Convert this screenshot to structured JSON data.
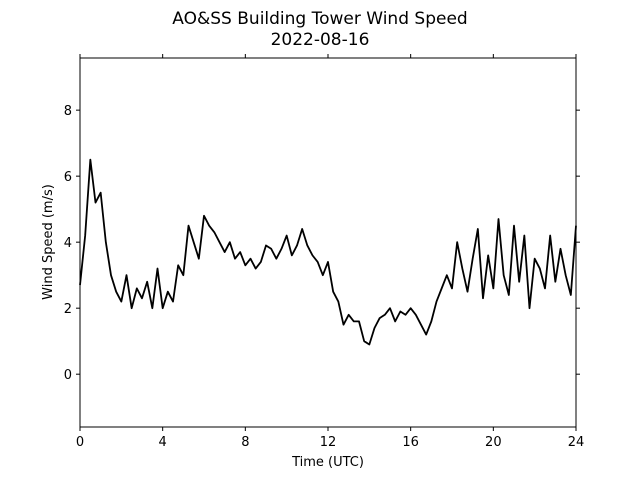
{
  "chart_data": {
    "type": "line",
    "title": "AO&SS Building Tower Wind Speed",
    "subtitle": "2022-08-16",
    "x_label": "Time (UTC)",
    "y_label": "Wind Speed (m/s)",
    "x": [
      0,
      0.25,
      0.5,
      0.75,
      1,
      1.25,
      1.5,
      1.75,
      2,
      2.25,
      2.5,
      2.75,
      3,
      3.25,
      3.5,
      3.75,
      4,
      4.25,
      4.5,
      4.75,
      5,
      5.25,
      5.5,
      5.75,
      6,
      6.25,
      6.5,
      6.75,
      7,
      7.25,
      7.5,
      7.75,
      8,
      8.25,
      8.5,
      8.75,
      9,
      9.25,
      9.5,
      9.75,
      10,
      10.25,
      10.5,
      10.75,
      11,
      11.25,
      11.5,
      11.75,
      12,
      12.25,
      12.5,
      12.75,
      13,
      13.25,
      13.5,
      13.75,
      14,
      14.25,
      14.5,
      14.75,
      15,
      15.25,
      15.5,
      15.75,
      16,
      16.25,
      16.5,
      16.75,
      17,
      17.25,
      17.5,
      17.75,
      18,
      18.25,
      18.5,
      18.75,
      19,
      19.25,
      19.5,
      19.75,
      20,
      20.25,
      20.5,
      20.75,
      21,
      21.25,
      21.5,
      21.75,
      22,
      22.25,
      22.5,
      22.75,
      23,
      23.25,
      23.5,
      23.75,
      24
    ],
    "series": [
      {
        "name": "Wind Speed",
        "color": "#000000",
        "values": [
          2.7,
          4.2,
          6.5,
          5.2,
          5.5,
          4.0,
          3.0,
          2.5,
          2.2,
          3.0,
          2.0,
          2.6,
          2.3,
          2.8,
          2.0,
          3.2,
          2.0,
          2.5,
          2.2,
          3.3,
          3.0,
          4.5,
          4.0,
          3.5,
          4.8,
          4.5,
          4.3,
          4.0,
          3.7,
          4.0,
          3.5,
          3.7,
          3.3,
          3.5,
          3.2,
          3.4,
          3.9,
          3.8,
          3.5,
          3.8,
          4.2,
          3.6,
          3.9,
          4.4,
          3.9,
          3.6,
          3.4,
          3.0,
          3.4,
          2.5,
          2.2,
          1.5,
          1.8,
          1.6,
          1.6,
          1.0,
          0.9,
          1.4,
          1.7,
          1.8,
          2.0,
          1.6,
          1.9,
          1.8,
          2.0,
          1.8,
          1.5,
          1.2,
          1.6,
          2.2,
          2.6,
          3.0,
          2.6,
          4.0,
          3.2,
          2.5,
          3.5,
          4.4,
          2.3,
          3.6,
          2.6,
          4.7,
          3.0,
          2.4,
          4.5,
          2.8,
          4.2,
          2.0,
          3.5,
          3.2,
          2.6,
          4.2,
          2.8,
          3.8,
          3.0,
          2.4,
          4.5
        ]
      }
    ],
    "xlim": [
      0,
      24
    ],
    "xticks": [
      0,
      4,
      8,
      12,
      16,
      20,
      24
    ],
    "ylim": [
      -1.6,
      9.58
    ],
    "yticks": [
      0,
      2,
      4,
      6,
      8
    ],
    "grid": false
  }
}
